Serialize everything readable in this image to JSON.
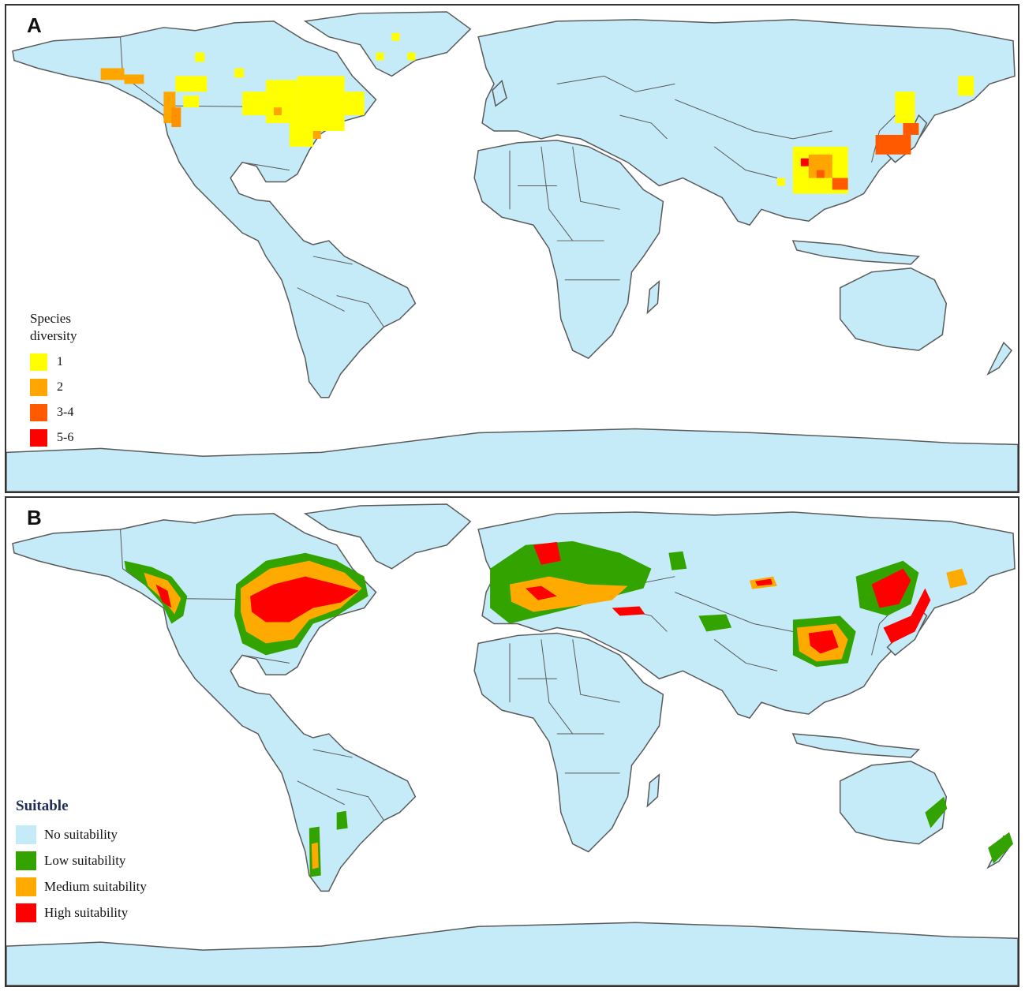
{
  "panel_a": {
    "label": "A",
    "legend": {
      "title_line1": "Species",
      "title_line2": "diversity",
      "items": [
        {
          "label": "1",
          "color": "#ffff00"
        },
        {
          "label": "2",
          "color": "#ffa500"
        },
        {
          "label": "3-4",
          "color": "#ff5a00"
        },
        {
          "label": "5-6",
          "color": "#ff0000"
        }
      ]
    }
  },
  "panel_b": {
    "label": "B",
    "legend": {
      "title": "Suitable",
      "items": [
        {
          "label": "No suitability",
          "color": "#c5eaf8"
        },
        {
          "label": "Low suitability",
          "color": "#33a300"
        },
        {
          "label": "Medium suitability",
          "color": "#ffaa00"
        },
        {
          "label": "High suitability",
          "color": "#ff0000"
        }
      ]
    }
  },
  "colors": {
    "land": "#c5eaf8",
    "border": "#5a5a5a",
    "ocean": "#ffffff"
  }
}
